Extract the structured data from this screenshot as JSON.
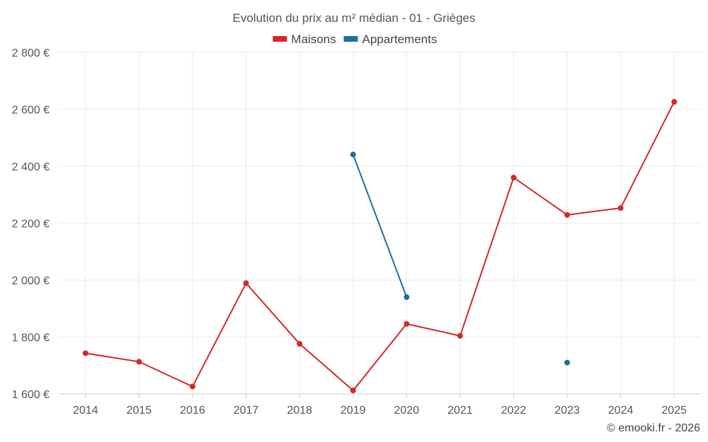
{
  "chart_data": {
    "type": "line",
    "title": "Evolution du prix au m² médian - 01 - Grièges",
    "credit": "© emooki.fr - 2026",
    "categories": [
      "2014",
      "2015",
      "2016",
      "2017",
      "2018",
      "2019",
      "2020",
      "2021",
      "2022",
      "2023",
      "2024",
      "2025"
    ],
    "y_ticks": [
      1600,
      1800,
      2000,
      2200,
      2400,
      2600,
      2800
    ],
    "y_tick_labels": [
      "1 600 €",
      "1 800 €",
      "2 000 €",
      "2 200 €",
      "2 400 €",
      "2 600 €",
      "2 800 €"
    ],
    "ylim": [
      1600,
      2800
    ],
    "grid": true,
    "legend_position": "top-center",
    "series": [
      {
        "name": "Maisons",
        "color": "#d62728",
        "values": [
          1743,
          1713,
          1626,
          1989,
          1776,
          1612,
          1846,
          1804,
          2360,
          2229,
          2253,
          2626
        ]
      },
      {
        "name": "Appartements",
        "color": "#1f6e9e",
        "values": [
          null,
          null,
          null,
          null,
          null,
          2441,
          1940,
          null,
          null,
          1710,
          null,
          null
        ]
      }
    ]
  }
}
